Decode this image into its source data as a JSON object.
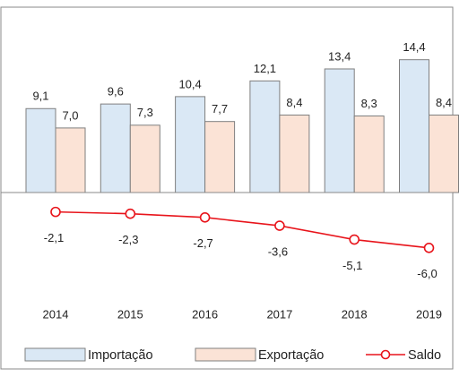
{
  "chart_data": {
    "type": "bar",
    "categories": [
      "2014",
      "2015",
      "2016",
      "2017",
      "2018",
      "2019"
    ],
    "ylim": [
      -8,
      16
    ],
    "series": [
      {
        "name": "Importação",
        "type": "bar",
        "color": "#dae8f5",
        "values": [
          9.1,
          9.6,
          10.4,
          12.1,
          13.4,
          14.4
        ],
        "value_labels": [
          "9,1",
          "9,6",
          "10,4",
          "12,1",
          "13,4",
          "14,4"
        ]
      },
      {
        "name": "Exportação",
        "type": "bar",
        "color": "#fbe3d6",
        "values": [
          7.0,
          7.3,
          7.7,
          8.4,
          8.3,
          8.4
        ],
        "value_labels": [
          "7,0",
          "7,3",
          "7,7",
          "8,4",
          "8,3",
          "8,4"
        ]
      },
      {
        "name": "Saldo",
        "type": "line",
        "color": "#e8141b",
        "values": [
          -2.1,
          -2.3,
          -2.7,
          -3.6,
          -5.1,
          -6.0
        ],
        "value_labels": [
          "-2,1",
          "-2,3",
          "-2,7",
          "-3,6",
          "-5,1",
          "-6,0"
        ]
      }
    ]
  }
}
